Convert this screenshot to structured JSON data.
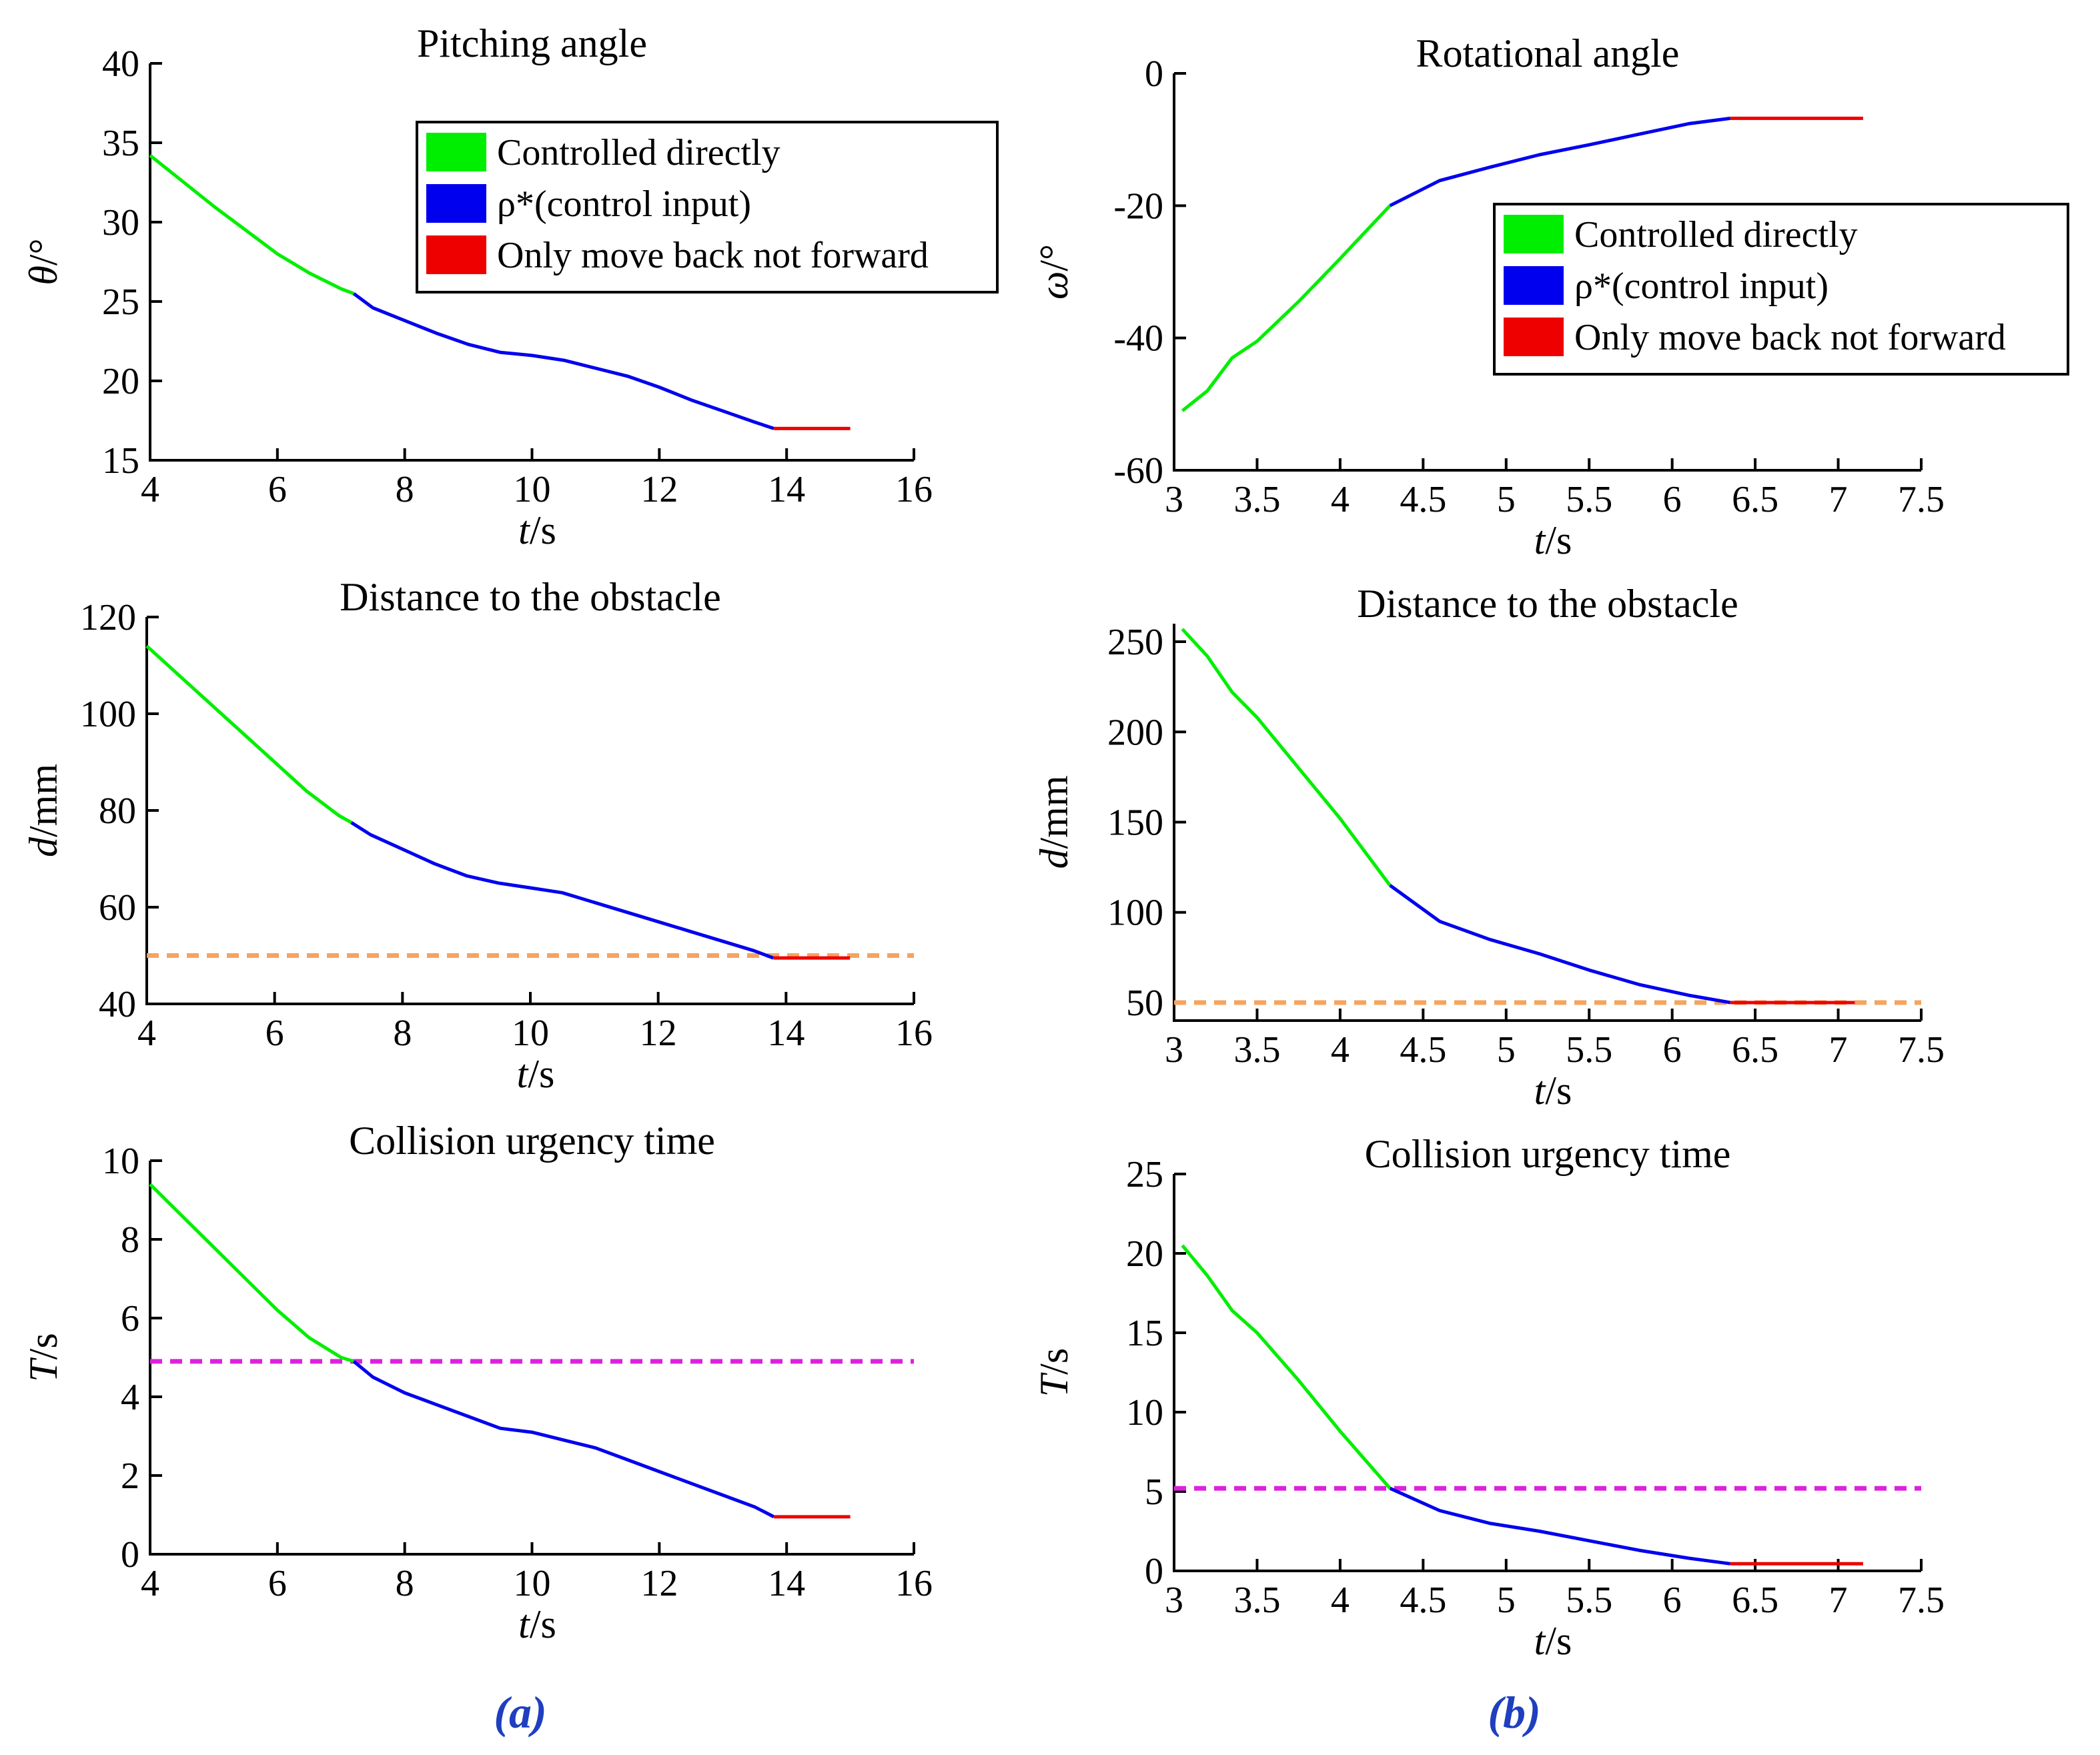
{
  "colors": {
    "controlled": "#00ee00",
    "control_input": "#0000ee",
    "back_only": "#ee0000",
    "distance_threshold": "#f4a460",
    "urgency_threshold": "#dd22dd",
    "panel_label": "#1f3fbf"
  },
  "legend_labels": [
    "Controlled directly",
    "ρ*(control input)",
    "Only move back not forward"
  ],
  "panel_labels": {
    "a": "(a)",
    "b": "(b)"
  },
  "chart_data": [
    {
      "id": "a1",
      "type": "line",
      "title": "Pitching angle",
      "xlabel_var": "t",
      "xlabel_unit": "/s",
      "ylabel_var": "θ",
      "ylabel_unit": "/°",
      "xlim": [
        4,
        16
      ],
      "ylim": [
        15,
        40
      ],
      "xticks": [
        4,
        6,
        8,
        10,
        12,
        14,
        16
      ],
      "yticks": [
        15,
        20,
        25,
        30,
        35,
        40
      ],
      "legend": "top-right",
      "series": [
        {
          "name": "Controlled directly",
          "color_key": "controlled",
          "x": [
            4.0,
            4.5,
            5.0,
            5.5,
            6.0,
            6.5,
            7.0,
            7.2
          ],
          "y": [
            34.2,
            32.6,
            31.0,
            29.5,
            28.0,
            26.8,
            25.8,
            25.5
          ]
        },
        {
          "name": "ρ*(control input)",
          "color_key": "control_input",
          "x": [
            7.2,
            7.5,
            8.0,
            8.5,
            9.0,
            9.5,
            10.0,
            10.5,
            11.0,
            11.5,
            12.0,
            12.5,
            13.0,
            13.5,
            13.8
          ],
          "y": [
            25.5,
            24.6,
            23.8,
            23.0,
            22.3,
            21.8,
            21.6,
            21.3,
            20.8,
            20.3,
            19.6,
            18.8,
            18.1,
            17.4,
            17.0
          ]
        },
        {
          "name": "Only move back not forward",
          "color_key": "back_only",
          "x": [
            13.8,
            15.0
          ],
          "y": [
            17.0,
            17.0
          ]
        }
      ]
    },
    {
      "id": "a2",
      "type": "line",
      "title": "Distance to the obstacle",
      "xlabel_var": "t",
      "xlabel_unit": "/s",
      "ylabel_var": "d",
      "ylabel_unit": "/mm",
      "xlim": [
        4,
        16
      ],
      "ylim": [
        40,
        120
      ],
      "xticks": [
        4,
        6,
        8,
        10,
        12,
        14,
        16
      ],
      "yticks": [
        40,
        60,
        80,
        100,
        120
      ],
      "series": [
        {
          "name": "Controlled directly",
          "color_key": "controlled",
          "x": [
            4.0,
            4.5,
            5.0,
            5.5,
            6.0,
            6.5,
            7.0,
            7.2
          ],
          "y": [
            114,
            108,
            102,
            96,
            90,
            84,
            79,
            77.5
          ]
        },
        {
          "name": "ρ*(control input)",
          "color_key": "control_input",
          "x": [
            7.2,
            7.5,
            8.0,
            8.5,
            9.0,
            9.5,
            10.0,
            10.5,
            11.0,
            11.5,
            12.0,
            12.5,
            13.0,
            13.5,
            13.8
          ],
          "y": [
            77.5,
            75,
            72,
            69,
            66.5,
            65,
            64,
            63,
            61,
            59,
            57,
            55,
            53,
            51,
            49.5
          ]
        },
        {
          "name": "Only move back not forward",
          "color_key": "back_only",
          "x": [
            13.8,
            15.0
          ],
          "y": [
            49.5,
            49.5
          ]
        }
      ],
      "thresholds": [
        {
          "y": 50,
          "color_key": "distance_threshold",
          "style": "dashed"
        }
      ]
    },
    {
      "id": "a3",
      "type": "line",
      "title": "Collision urgency time",
      "xlabel_var": "t",
      "xlabel_unit": "/s",
      "ylabel_var": "T",
      "ylabel_unit": "/s",
      "xlim": [
        4,
        16
      ],
      "ylim": [
        0,
        10
      ],
      "xticks": [
        4,
        6,
        8,
        10,
        12,
        14,
        16
      ],
      "yticks": [
        0,
        2,
        4,
        6,
        8,
        10
      ],
      "series": [
        {
          "name": "Controlled directly",
          "color_key": "controlled",
          "x": [
            4.0,
            4.5,
            5.0,
            5.5,
            6.0,
            6.5,
            7.0,
            7.2
          ],
          "y": [
            9.4,
            8.6,
            7.8,
            7.0,
            6.2,
            5.5,
            5.0,
            4.9
          ]
        },
        {
          "name": "ρ*(control input)",
          "color_key": "control_input",
          "x": [
            7.2,
            7.5,
            8.0,
            8.5,
            9.0,
            9.5,
            10.0,
            10.5,
            11.0,
            11.5,
            12.0,
            12.5,
            13.0,
            13.5,
            13.8
          ],
          "y": [
            4.9,
            4.5,
            4.1,
            3.8,
            3.5,
            3.2,
            3.1,
            2.9,
            2.7,
            2.4,
            2.1,
            1.8,
            1.5,
            1.2,
            0.95
          ]
        },
        {
          "name": "Only move back not forward",
          "color_key": "back_only",
          "x": [
            13.8,
            15.0
          ],
          "y": [
            0.95,
            0.95
          ]
        }
      ],
      "thresholds": [
        {
          "y": 4.9,
          "color_key": "urgency_threshold",
          "style": "dashed"
        }
      ]
    },
    {
      "id": "b1",
      "type": "line",
      "title": "Rotational angle",
      "xlabel_var": "t",
      "xlabel_unit": "/s",
      "ylabel_var": "ω",
      "ylabel_unit": "/°",
      "xlim": [
        3,
        7.5
      ],
      "ylim": [
        -60,
        0
      ],
      "xticks": [
        3,
        3.5,
        4,
        4.5,
        5,
        5.5,
        6,
        6.5,
        7,
        7.5
      ],
      "yticks": [
        -60,
        -40,
        -20,
        0
      ],
      "legend": "top-right",
      "series": [
        {
          "name": "Controlled directly",
          "color_key": "controlled",
          "x": [
            3.05,
            3.2,
            3.35,
            3.5,
            3.75,
            4.0,
            4.3
          ],
          "y": [
            -51,
            -48,
            -43,
            -40.5,
            -34.5,
            -28,
            -20
          ]
        },
        {
          "name": "ρ*(control input)",
          "color_key": "control_input",
          "x": [
            4.3,
            4.6,
            4.9,
            5.2,
            5.5,
            5.8,
            6.1,
            6.35
          ],
          "y": [
            -20,
            -16.2,
            -14.2,
            -12.3,
            -10.8,
            -9.2,
            -7.6,
            -6.8
          ]
        },
        {
          "name": "Only move back not forward",
          "color_key": "back_only",
          "x": [
            6.35,
            7.15
          ],
          "y": [
            -6.8,
            -6.8
          ]
        }
      ]
    },
    {
      "id": "b2",
      "type": "line",
      "title": "Distance to the obstacle",
      "xlabel_var": "t",
      "xlabel_unit": "/s",
      "ylabel_var": "d",
      "ylabel_unit": "/mm",
      "xlim": [
        3,
        7.5
      ],
      "ylim": [
        40,
        260
      ],
      "xticks": [
        3,
        3.5,
        4,
        4.5,
        5,
        5.5,
        6,
        6.5,
        7,
        7.5
      ],
      "yticks": [
        50,
        100,
        150,
        200,
        250
      ],
      "series": [
        {
          "name": "Controlled directly",
          "color_key": "controlled",
          "x": [
            3.05,
            3.2,
            3.35,
            3.5,
            3.75,
            4.0,
            4.3
          ],
          "y": [
            257,
            242,
            222,
            208,
            180,
            152,
            115
          ]
        },
        {
          "name": "ρ*(control input)",
          "color_key": "control_input",
          "x": [
            4.3,
            4.6,
            4.9,
            5.2,
            5.5,
            5.8,
            6.1,
            6.35
          ],
          "y": [
            115,
            95,
            85,
            77,
            68,
            60,
            54,
            50
          ]
        },
        {
          "name": "Only move back not forward",
          "color_key": "back_only",
          "x": [
            6.35,
            7.1
          ],
          "y": [
            50,
            50
          ]
        }
      ],
      "thresholds": [
        {
          "y": 50,
          "color_key": "distance_threshold",
          "style": "dashed"
        }
      ]
    },
    {
      "id": "b3",
      "type": "line",
      "title": "Collision urgency time",
      "xlabel_var": "t",
      "xlabel_unit": "/s",
      "ylabel_var": "T",
      "ylabel_unit": "/s",
      "xlim": [
        3,
        7.5
      ],
      "ylim": [
        0,
        25
      ],
      "xticks": [
        3,
        3.5,
        4,
        4.5,
        5,
        5.5,
        6,
        6.5,
        7,
        7.5
      ],
      "yticks": [
        0,
        5,
        10,
        15,
        20,
        25
      ],
      "series": [
        {
          "name": "Controlled directly",
          "color_key": "controlled",
          "x": [
            3.05,
            3.2,
            3.35,
            3.5,
            3.75,
            4.0,
            4.3
          ],
          "y": [
            20.5,
            18.6,
            16.4,
            15.0,
            12.0,
            8.8,
            5.2
          ]
        },
        {
          "name": "ρ*(control input)",
          "color_key": "control_input",
          "x": [
            4.3,
            4.6,
            4.9,
            5.2,
            5.5,
            5.8,
            6.1,
            6.35
          ],
          "y": [
            5.2,
            3.8,
            3.0,
            2.5,
            1.9,
            1.3,
            0.8,
            0.45
          ]
        },
        {
          "name": "Only move back not forward",
          "color_key": "back_only",
          "x": [
            6.35,
            7.15
          ],
          "y": [
            0.45,
            0.45
          ]
        }
      ],
      "thresholds": [
        {
          "y": 5.2,
          "color_key": "urgency_threshold",
          "style": "dashed"
        }
      ]
    }
  ]
}
